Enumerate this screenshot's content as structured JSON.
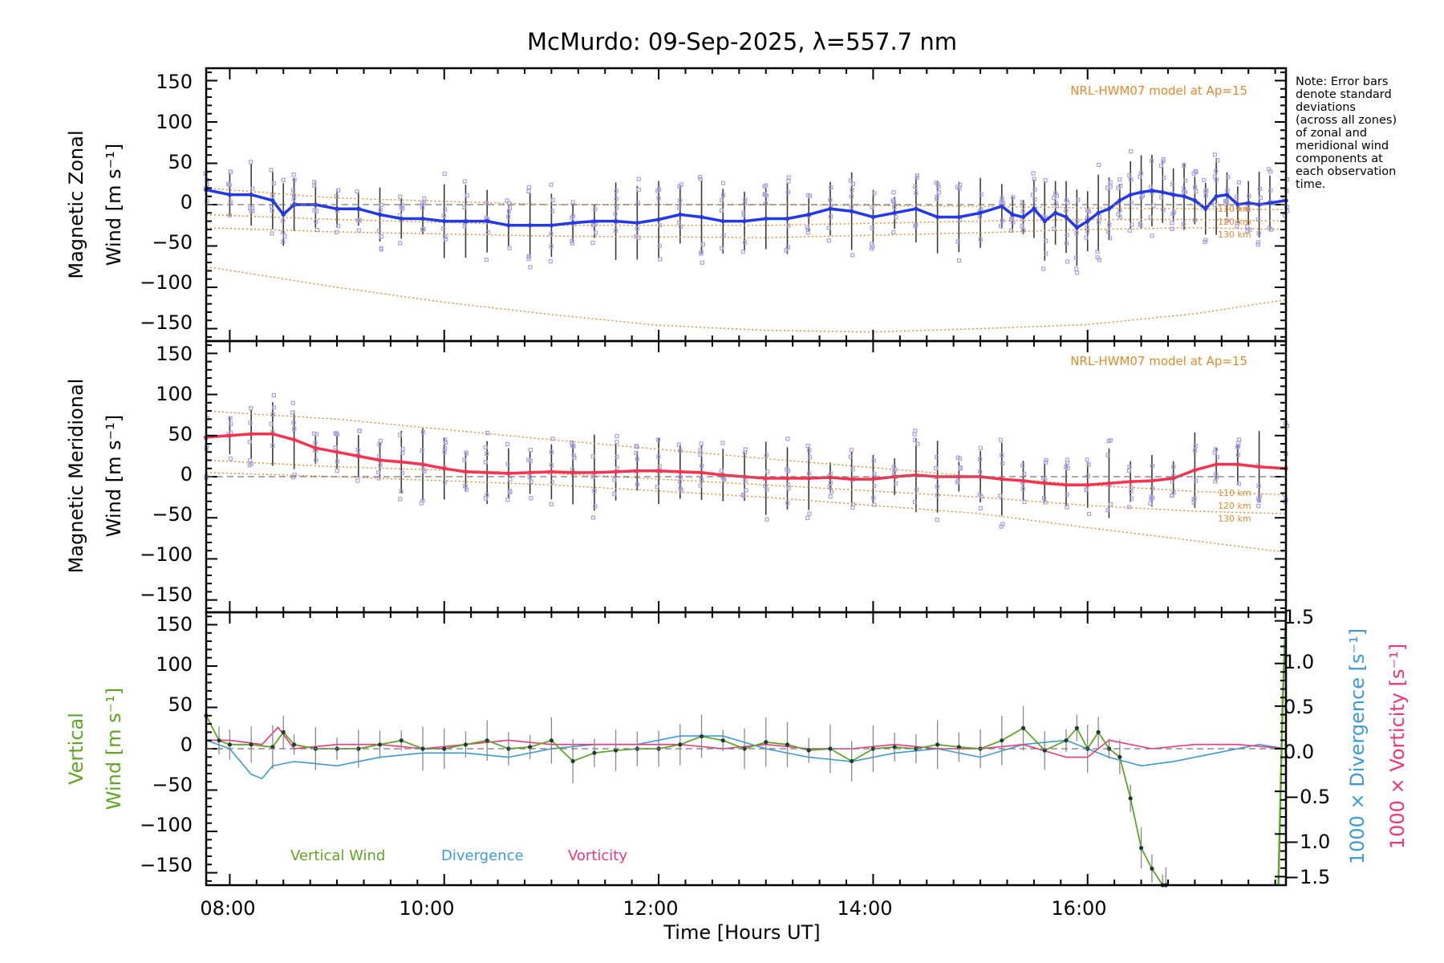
{
  "title": "McMurdo: 09-Sep-2025, λ=557.7 nm",
  "note_lines": [
    "Note: Error bars",
    "denote standard",
    "deviations",
    "(across all zones)",
    "of zonal and",
    "meridional wind",
    "components at",
    "each observation",
    "time."
  ],
  "model_label": "NRL-HWM07 model at Ap=15",
  "altitude_labels": [
    "110 km",
    "120 km",
    "130 km"
  ],
  "x_axis": {
    "title": "Time [Hours UT]",
    "ticks": [
      "08:00",
      "10:00",
      "12:00",
      "14:00",
      "16:00"
    ]
  },
  "y_ticks": [
    "150",
    "100",
    "50",
    "0",
    "−50",
    "−100",
    "−150"
  ],
  "right_ticks": [
    "1.5",
    "1.0",
    "0.5",
    "0.0",
    "−0.5",
    "−1.0",
    "−1.5"
  ],
  "panels": {
    "zonal": {
      "ylabel_line1": "Magnetic Zonal",
      "ylabel_line2": "Wind [m s⁻¹]"
    },
    "meridional": {
      "ylabel_line1": "Magnetic Meridional",
      "ylabel_line2": "Wind [m s⁻¹]"
    },
    "vertical": {
      "ylabel_line1": "Vertical",
      "ylabel_line2": "Wind [m s⁻¹]",
      "right_label_div": "1000 × Divergence [s⁻¹]",
      "right_label_vor": "1000 × Vorticity [s⁻¹]"
    }
  },
  "legend": [
    "Vertical Wind",
    "Divergence",
    "Vorticity"
  ],
  "colors": {
    "zonal": "#2338e8",
    "meridional": "#f8324f",
    "vertical": "#5fa526",
    "divergence": "#3c9ad6",
    "vorticity": "#f0367a",
    "model": "#e08a2c",
    "scatter": "#a8a2e0",
    "errorbar": "#3a3a3a"
  },
  "chart_data": [
    {
      "type": "line",
      "panel": "zonal",
      "title": "McMurdo: 09-Sep-2025, λ=557.7 nm",
      "xlabel": "Time [Hours UT]",
      "ylabel": "Magnetic Zonal Wind [m s-1]",
      "xlim": [
        7.78,
        17.85
      ],
      "ylim": [
        -165,
        165
      ],
      "series": [
        {
          "name": "Zonal wind",
          "x": [
            7.78,
            8.0,
            8.2,
            8.4,
            8.5,
            8.6,
            8.8,
            9.0,
            9.2,
            9.4,
            9.6,
            9.8,
            10.0,
            10.2,
            10.4,
            10.6,
            10.8,
            11.0,
            11.2,
            11.4,
            11.6,
            11.8,
            12.0,
            12.2,
            12.4,
            12.6,
            12.8,
            13.0,
            13.2,
            13.4,
            13.6,
            13.8,
            14.0,
            14.2,
            14.4,
            14.6,
            14.8,
            15.0,
            15.2,
            15.3,
            15.4,
            15.5,
            15.6,
            15.7,
            15.8,
            15.9,
            16.0,
            16.1,
            16.2,
            16.3,
            16.4,
            16.5,
            16.6,
            16.7,
            16.8,
            16.9,
            17.0,
            17.1,
            17.2,
            17.3,
            17.4,
            17.5,
            17.6,
            17.7,
            17.85
          ],
          "y": [
            18,
            12,
            12,
            5,
            -12,
            0,
            0,
            -5,
            -5,
            -12,
            -17,
            -17,
            -20,
            -20,
            -20,
            -25,
            -25,
            -25,
            -22,
            -20,
            -20,
            -22,
            -18,
            -12,
            -15,
            -20,
            -20,
            -17,
            -17,
            -12,
            -5,
            -8,
            -15,
            -10,
            -5,
            -15,
            -15,
            -10,
            -2,
            -12,
            -15,
            -5,
            -20,
            -10,
            -15,
            -28,
            -20,
            -10,
            -5,
            5,
            12,
            15,
            17,
            15,
            12,
            10,
            5,
            -5,
            10,
            12,
            0,
            2,
            0,
            2,
            5
          ]
        },
        {
          "name": "NRL-HWM07 110 km",
          "x": [
            7.78,
            9.0,
            11.0,
            13.0,
            15.0,
            16.0,
            17.0,
            17.85
          ],
          "y": [
            20,
            8,
            0,
            0,
            -2,
            -4,
            -5,
            -6
          ]
        },
        {
          "name": "NRL-HWM07 120 km",
          "x": [
            7.78,
            9.0,
            11.0,
            13.0,
            15.0,
            16.0,
            17.0,
            17.85
          ],
          "y": [
            -12,
            -18,
            -25,
            -25,
            -20,
            -18,
            -18,
            -20
          ]
        },
        {
          "name": "NRL-HWM07 130 km",
          "x": [
            7.78,
            9.0,
            11.0,
            13.0,
            15.0,
            16.0,
            17.0,
            17.85
          ],
          "y": [
            -28,
            -33,
            -38,
            -40,
            -34,
            -30,
            -28,
            -30
          ]
        },
        {
          "name": "NRL-HWM07 deep",
          "x": [
            7.78,
            9.0,
            10.0,
            11.0,
            12.0,
            13.0,
            14.0,
            15.0,
            16.0,
            17.0,
            17.85
          ],
          "y": [
            -75,
            -100,
            -118,
            -133,
            -146,
            -152,
            -154,
            -150,
            -145,
            -132,
            -115
          ]
        }
      ]
    },
    {
      "type": "line",
      "panel": "meridional",
      "xlabel": "Time [Hours UT]",
      "ylabel": "Magnetic Meridional Wind [m s-1]",
      "xlim": [
        7.78,
        17.85
      ],
      "ylim": [
        -165,
        165
      ],
      "series": [
        {
          "name": "Meridional wind",
          "x": [
            7.78,
            8.0,
            8.2,
            8.4,
            8.6,
            8.8,
            9.0,
            9.2,
            9.4,
            9.6,
            9.8,
            10.0,
            10.2,
            10.4,
            10.6,
            10.8,
            11.0,
            11.2,
            11.4,
            11.6,
            11.8,
            12.0,
            12.2,
            12.4,
            12.6,
            12.8,
            13.0,
            13.2,
            13.4,
            13.6,
            13.8,
            14.0,
            14.2,
            14.4,
            14.6,
            14.8,
            15.0,
            15.2,
            15.4,
            15.6,
            15.8,
            16.0,
            16.2,
            16.4,
            16.6,
            16.8,
            17.0,
            17.2,
            17.4,
            17.6,
            17.85
          ],
          "y": [
            48,
            50,
            52,
            52,
            45,
            35,
            30,
            25,
            20,
            18,
            15,
            10,
            6,
            5,
            4,
            5,
            6,
            5,
            5,
            6,
            7,
            7,
            6,
            5,
            2,
            0,
            -2,
            -2,
            -2,
            -1,
            -3,
            -3,
            0,
            2,
            0,
            0,
            0,
            -3,
            -5,
            -8,
            -10,
            -10,
            -8,
            -6,
            -5,
            -2,
            8,
            15,
            15,
            12,
            10
          ]
        },
        {
          "name": "NRL-HWM07 110 km",
          "x": [
            7.78,
            9.0,
            11.0,
            13.0,
            15.0,
            16.0,
            17.0,
            17.85
          ],
          "y": [
            80,
            70,
            45,
            22,
            0,
            -10,
            -18,
            -22
          ]
        },
        {
          "name": "NRL-HWM07 120 km",
          "x": [
            7.78,
            9.0,
            11.0,
            13.0,
            15.0,
            16.0,
            17.0,
            17.85
          ],
          "y": [
            20,
            12,
            4,
            -10,
            -25,
            -35,
            -42,
            -45
          ]
        },
        {
          "name": "NRL-HWM07 130 km",
          "x": [
            7.78,
            9.0,
            11.0,
            13.0,
            15.0,
            16.0,
            17.0,
            17.85
          ],
          "y": [
            5,
            0,
            -10,
            -25,
            -45,
            -62,
            -78,
            -92
          ]
        }
      ]
    },
    {
      "type": "line",
      "panel": "vertical",
      "xlabel": "Time [Hours UT]",
      "ylabel": "Vertical Wind [m s-1]",
      "xlim": [
        7.78,
        17.85
      ],
      "ylim": [
        -165,
        165
      ],
      "y2label": "1000 x Divergence / Vorticity [s-1]",
      "y2lim": [
        -1.6,
        1.6
      ],
      "series": [
        {
          "name": "Vertical Wind",
          "x": [
            7.78,
            7.9,
            8.0,
            8.2,
            8.4,
            8.5,
            8.6,
            8.8,
            9.0,
            9.2,
            9.4,
            9.6,
            9.8,
            10.0,
            10.2,
            10.4,
            10.6,
            10.8,
            11.0,
            11.2,
            11.4,
            11.6,
            11.8,
            12.0,
            12.2,
            12.4,
            12.6,
            12.8,
            13.0,
            13.2,
            13.4,
            13.6,
            13.8,
            14.0,
            14.2,
            14.4,
            14.6,
            14.8,
            15.0,
            15.2,
            15.4,
            15.6,
            15.8,
            15.9,
            16.0,
            16.1,
            16.2,
            16.3,
            16.4,
            16.5,
            16.6,
            16.7,
            16.73
          ],
          "y": [
            40,
            10,
            5,
            5,
            2,
            20,
            5,
            0,
            0,
            0,
            5,
            10,
            0,
            0,
            5,
            10,
            0,
            2,
            10,
            -15,
            -5,
            -2,
            0,
            0,
            5,
            15,
            10,
            0,
            8,
            5,
            -2,
            0,
            -15,
            0,
            2,
            0,
            5,
            2,
            0,
            10,
            25,
            -2,
            10,
            25,
            0,
            20,
            0,
            -10,
            -60,
            -120,
            -145,
            -165,
            -165
          ]
        },
        {
          "name": "Vertical Wind (late)",
          "x": [
            17.78,
            17.82,
            17.85
          ],
          "y": [
            -165,
            60,
            165
          ]
        },
        {
          "name": "Divergence",
          "x": [
            7.78,
            8.0,
            8.2,
            8.3,
            8.4,
            8.6,
            9.0,
            9.4,
            9.8,
            10.2,
            10.6,
            11.0,
            11.4,
            11.8,
            12.2,
            12.6,
            13.0,
            13.4,
            13.8,
            14.2,
            14.6,
            15.0,
            15.4,
            15.8,
            16.0,
            16.2,
            16.5,
            16.8,
            17.2,
            17.6,
            17.85
          ],
          "y": [
            0.1,
            0.0,
            -0.3,
            -0.35,
            -0.2,
            -0.15,
            -0.2,
            -0.1,
            -0.05,
            -0.05,
            -0.1,
            0.0,
            0.05,
            0.05,
            0.15,
            0.15,
            0.0,
            -0.1,
            -0.15,
            -0.05,
            0.0,
            -0.1,
            0.05,
            0.1,
            0.0,
            -0.1,
            -0.2,
            -0.15,
            -0.05,
            0.05,
            0.0
          ]
        },
        {
          "name": "Vorticity",
          "x": [
            7.78,
            8.0,
            8.3,
            8.45,
            8.6,
            9.0,
            9.4,
            9.8,
            10.2,
            10.6,
            11.0,
            11.4,
            11.8,
            12.2,
            12.6,
            13.0,
            13.4,
            13.8,
            14.2,
            14.6,
            15.0,
            15.4,
            15.8,
            16.0,
            16.2,
            16.6,
            17.0,
            17.4,
            17.85
          ],
          "y": [
            0.1,
            0.1,
            0.05,
            0.25,
            0.0,
            0.05,
            0.05,
            0.0,
            0.05,
            0.1,
            0.05,
            0.05,
            0.05,
            0.05,
            0.0,
            0.05,
            0.0,
            0.0,
            0.05,
            0.0,
            0.0,
            0.05,
            -0.1,
            -0.1,
            0.1,
            0.0,
            0.05,
            0.05,
            0.0
          ]
        }
      ]
    }
  ]
}
